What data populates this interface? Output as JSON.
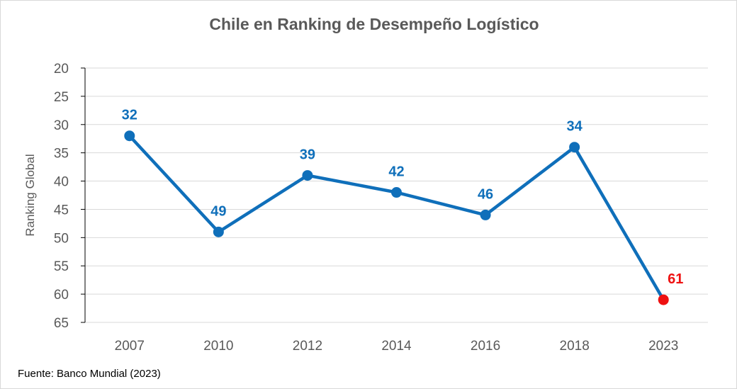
{
  "chart_data": {
    "type": "line",
    "title": "Chile en Ranking de Desempeño Logístico",
    "ylabel": "Ranking Global",
    "xlabel": "",
    "y_inverted": true,
    "ylim": [
      20,
      65
    ],
    "yticks": [
      20,
      25,
      30,
      35,
      40,
      45,
      50,
      55,
      60,
      65
    ],
    "ytick_labels": [
      "20",
      "25",
      "30",
      "35",
      "40",
      "45",
      "50",
      "55",
      "60",
      "65"
    ],
    "categories": [
      "2007",
      "2010",
      "2012",
      "2014",
      "2016",
      "2018",
      "2023"
    ],
    "values": [
      32,
      49,
      39,
      42,
      46,
      34,
      61
    ],
    "value_labels": [
      "32",
      "49",
      "39",
      "42",
      "46",
      "34",
      "61"
    ],
    "grid": true,
    "colors": {
      "line": "#0f6fba",
      "highlight": "#ee1111",
      "text": "#595959"
    },
    "highlight_index": 6
  },
  "source": "Fuente: Banco Mundial (2023)"
}
